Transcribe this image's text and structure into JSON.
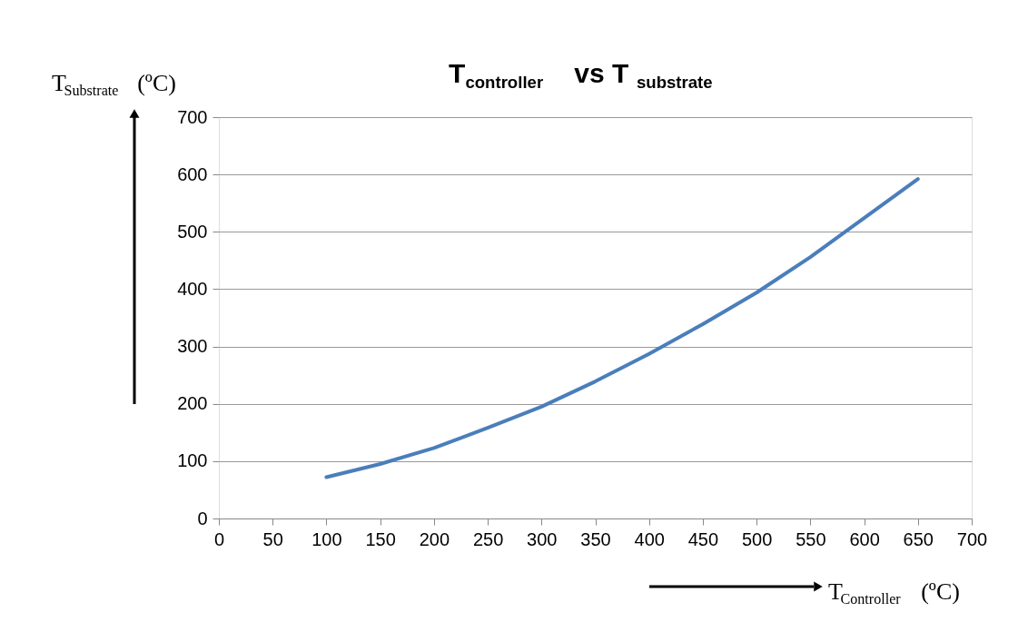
{
  "chart_data": {
    "type": "line",
    "title": "T$_{controller}$ vs T$_{substrate}$",
    "xlabel": "T$_{Controller}$ (ºC)",
    "ylabel": "T$_{Substrate}$ (ºC)",
    "x": [
      100,
      150,
      200,
      250,
      300,
      350,
      400,
      450,
      500,
      550,
      600,
      650
    ],
    "series": [
      {
        "color": "#4a7ebb",
        "values": [
          72,
          95,
          123,
          158,
          195,
          239,
          287,
          339,
          394,
          456,
          524,
          592
        ]
      }
    ],
    "xlim": [
      0,
      700
    ],
    "ylim": [
      0,
      700
    ],
    "xticks": [
      0,
      50,
      100,
      150,
      200,
      250,
      300,
      350,
      400,
      450,
      500,
      550,
      600,
      650,
      700
    ],
    "yticks": [
      0,
      100,
      200,
      300,
      400,
      500,
      600,
      700
    ],
    "grid": "y"
  }
}
